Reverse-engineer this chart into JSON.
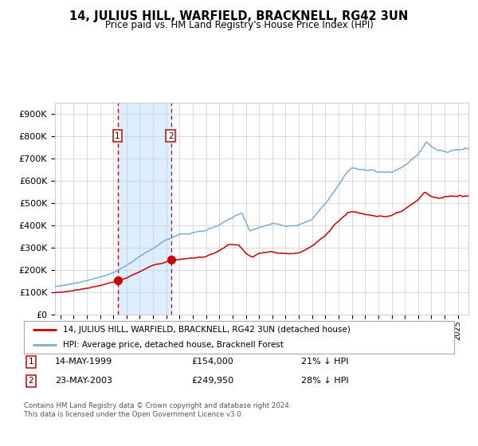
{
  "title": "14, JULIUS HILL, WARFIELD, BRACKNELL, RG42 3UN",
  "subtitle": "Price paid vs. HM Land Registry's House Price Index (HPI)",
  "legend_line1": "14, JULIUS HILL, WARFIELD, BRACKNELL, RG42 3UN (detached house)",
  "legend_line2": "HPI: Average price, detached house, Bracknell Forest",
  "purchase1_date": "14-MAY-1999",
  "purchase1_price": 154000,
  "purchase1_pct": "21% ↓ HPI",
  "purchase2_date": "23-MAY-2003",
  "purchase2_price": 249950,
  "purchase2_pct": "28% ↓ HPI",
  "footer": "Contains HM Land Registry data © Crown copyright and database right 2024.\nThis data is licensed under the Open Government Licence v3.0.",
  "red_color": "#cc0000",
  "blue_color": "#7aaddb",
  "bg_color": "#ffffff",
  "grid_color": "#cccccc",
  "shade_color": "#ddeeff",
  "ylim": [
    0,
    950000
  ],
  "yticks": [
    0,
    100000,
    200000,
    300000,
    400000,
    500000,
    600000,
    700000,
    800000,
    900000
  ],
  "xlim_start": 1994.6,
  "xlim_end": 2025.8,
  "purchase1_x": 1999.37,
  "purchase2_x": 2003.39,
  "anchors_hpi": [
    [
      1994.6,
      125000
    ],
    [
      1995.5,
      133000
    ],
    [
      1997.0,
      150000
    ],
    [
      1998.0,
      165000
    ],
    [
      1999.0,
      185000
    ],
    [
      2000.0,
      215000
    ],
    [
      2001.0,
      255000
    ],
    [
      2002.0,
      290000
    ],
    [
      2003.0,
      330000
    ],
    [
      2004.0,
      355000
    ],
    [
      2005.0,
      360000
    ],
    [
      2006.0,
      368000
    ],
    [
      2007.0,
      390000
    ],
    [
      2008.0,
      420000
    ],
    [
      2008.7,
      445000
    ],
    [
      2009.3,
      365000
    ],
    [
      2009.8,
      375000
    ],
    [
      2010.5,
      385000
    ],
    [
      2011.0,
      395000
    ],
    [
      2012.0,
      385000
    ],
    [
      2013.0,
      390000
    ],
    [
      2014.0,
      415000
    ],
    [
      2015.0,
      490000
    ],
    [
      2016.0,
      570000
    ],
    [
      2016.7,
      630000
    ],
    [
      2017.0,
      645000
    ],
    [
      2018.0,
      638000
    ],
    [
      2019.0,
      625000
    ],
    [
      2020.0,
      618000
    ],
    [
      2021.0,
      640000
    ],
    [
      2022.0,
      690000
    ],
    [
      2022.6,
      745000
    ],
    [
      2023.0,
      720000
    ],
    [
      2023.5,
      700000
    ],
    [
      2024.0,
      695000
    ],
    [
      2024.5,
      698000
    ],
    [
      2025.5,
      705000
    ]
  ],
  "anchors_red": [
    [
      1994.6,
      98000
    ],
    [
      1995.5,
      103000
    ],
    [
      1997.0,
      118000
    ],
    [
      1998.0,
      132000
    ],
    [
      1999.0,
      146000
    ],
    [
      1999.37,
      154000
    ],
    [
      2000.0,
      163000
    ],
    [
      2001.0,
      193000
    ],
    [
      2002.0,
      220000
    ],
    [
      2003.0,
      240000
    ],
    [
      2003.39,
      249950
    ],
    [
      2004.0,
      253000
    ],
    [
      2005.0,
      258000
    ],
    [
      2006.0,
      264000
    ],
    [
      2007.0,
      288000
    ],
    [
      2007.7,
      315000
    ],
    [
      2008.5,
      308000
    ],
    [
      2009.0,
      272000
    ],
    [
      2009.5,
      252000
    ],
    [
      2010.0,
      268000
    ],
    [
      2011.0,
      278000
    ],
    [
      2012.0,
      268000
    ],
    [
      2013.0,
      272000
    ],
    [
      2014.0,
      305000
    ],
    [
      2015.0,
      355000
    ],
    [
      2016.0,
      415000
    ],
    [
      2016.7,
      458000
    ],
    [
      2017.0,
      462000
    ],
    [
      2017.5,
      455000
    ],
    [
      2018.0,
      448000
    ],
    [
      2019.0,
      443000
    ],
    [
      2020.0,
      438000
    ],
    [
      2021.0,
      458000
    ],
    [
      2022.0,
      488000
    ],
    [
      2022.5,
      528000
    ],
    [
      2023.0,
      508000
    ],
    [
      2023.5,
      498000
    ],
    [
      2024.0,
      503000
    ],
    [
      2024.5,
      508000
    ],
    [
      2025.5,
      512000
    ]
  ]
}
